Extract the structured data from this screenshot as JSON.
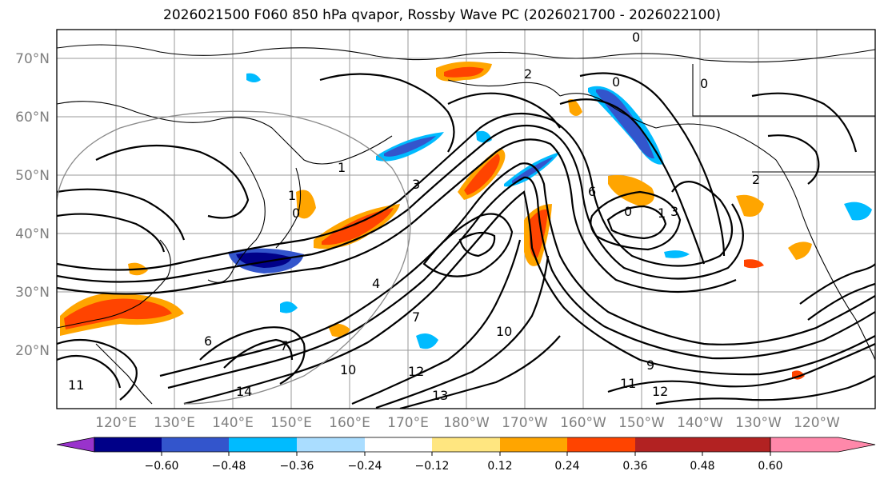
{
  "title": "2026021500 F060 850 hPa qvapor, Rossby Wave PC (2026021700 - 2026022100)",
  "lat_labels": [
    "70°N",
    "60°N",
    "50°N",
    "40°N",
    "30°N",
    "20°N"
  ],
  "lon_labels": [
    "120°E",
    "130°E",
    "140°E",
    "150°E",
    "160°E",
    "170°E",
    "180°W",
    "170°W",
    "160°W",
    "150°W",
    "140°W",
    "130°W",
    "120°W"
  ],
  "colorbar": {
    "colors": [
      "#9933cc",
      "#000088",
      "#3355cc",
      "#00bbff",
      "#aaddff",
      "#ffffff",
      "#ffe680",
      "#ffa500",
      "#ff4400",
      "#b22222",
      "#ff88aa"
    ],
    "tick_labels": [
      "−0.60",
      "−0.48",
      "−0.36",
      "−0.24",
      "−0.12",
      "0.12",
      "0.24",
      "0.36",
      "0.48",
      "0.60"
    ]
  },
  "contour_labels": [
    "0",
    "0",
    "0",
    "0",
    "0",
    "1",
    "1",
    "1",
    "2",
    "3",
    "3",
    "4",
    "6",
    "6",
    "7",
    "7",
    "9",
    "10",
    "10",
    "11",
    "11",
    "12",
    "12",
    "13",
    "14",
    "2"
  ]
}
